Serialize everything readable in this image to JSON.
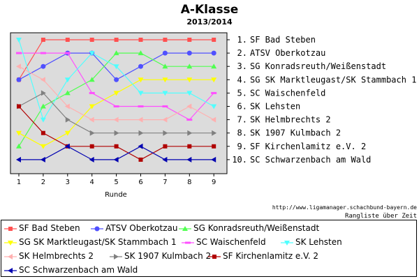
{
  "chart_data": {
    "type": "line",
    "title": "A-Klasse",
    "subtitle": "2013/2014",
    "xlabel": "Runde",
    "ylabel": "",
    "x": [
      1,
      2,
      3,
      4,
      5,
      6,
      7,
      8,
      9
    ],
    "ylim": [
      10.5,
      0.5
    ],
    "y_reversed": true,
    "grid": false,
    "legend_position": "bottom",
    "ranking_labels": [
      "1. SF Bad Steben",
      "2. ATSV Oberkotzau",
      "3. SG Konradsreuth/Weißenstadt",
      "4. SG SK Marktleugast/SK Stammbach 1",
      "5. SC Waischenfeld",
      "6. SK Lehsten",
      "7. SK Helmbrechts 2",
      "8. SK 1907 Kulmbach 2",
      "9. SF Kirchenlamitz e.V. 2",
      "10. SC Schwarzenbach am Wald"
    ],
    "series": [
      {
        "name": "SF Bad Steben",
        "color": "#ff5050",
        "marker": "square",
        "values": [
          4,
          1,
          1,
          1,
          1,
          1,
          1,
          1,
          1
        ]
      },
      {
        "name": "ATSV Oberkotzau",
        "color": "#5050ff",
        "marker": "circle",
        "values": [
          4,
          3,
          2,
          2,
          4,
          3,
          2,
          2,
          2
        ]
      },
      {
        "name": "SG Konradsreuth/Weißenstadt",
        "color": "#50ff50",
        "marker": "triangle-up",
        "values": [
          9,
          6,
          5,
          4,
          2,
          2,
          3,
          3,
          3
        ]
      },
      {
        "name": "SG SK Marktleugast/SK Stammbach 1",
        "color": "#ffff00",
        "marker": "triangle-down",
        "values": [
          8,
          9,
          8,
          6,
          5,
          4,
          4,
          4,
          4
        ]
      },
      {
        "name": "SC Waischenfeld",
        "color": "#ff50ff",
        "marker": "dash",
        "values": [
          2,
          2,
          2,
          5,
          6,
          6,
          6,
          7,
          5
        ]
      },
      {
        "name": "SK Lehsten",
        "color": "#50ffff",
        "marker": "triangle-down",
        "values": [
          1,
          7,
          4,
          2,
          3,
          5,
          5,
          5,
          6
        ]
      },
      {
        "name": "SK Helmbrechts 2",
        "color": "#ffb0b0",
        "marker": "triangle-left",
        "values": [
          3,
          4,
          6,
          7,
          7,
          7,
          7,
          6,
          7
        ]
      },
      {
        "name": "SK 1907 Kulmbach 2",
        "color": "#808080",
        "marker": "triangle-right",
        "values": [
          6,
          5,
          7,
          8,
          8,
          8,
          8,
          8,
          8
        ]
      },
      {
        "name": "SF Kirchenlamitz e.V. 2",
        "color": "#b00000",
        "marker": "square",
        "values": [
          6,
          8,
          9,
          9,
          9,
          10,
          9,
          9,
          9
        ]
      },
      {
        "name": "SC Schwarzenbach am Wald",
        "color": "#0000b0",
        "marker": "triangle-left",
        "values": [
          10,
          10,
          9,
          10,
          10,
          9,
          10,
          10,
          10
        ]
      }
    ]
  },
  "footer": {
    "url": "http://www.ligamanager.schachbund-bayern.de",
    "caption": "Rangliste über Zeit"
  }
}
